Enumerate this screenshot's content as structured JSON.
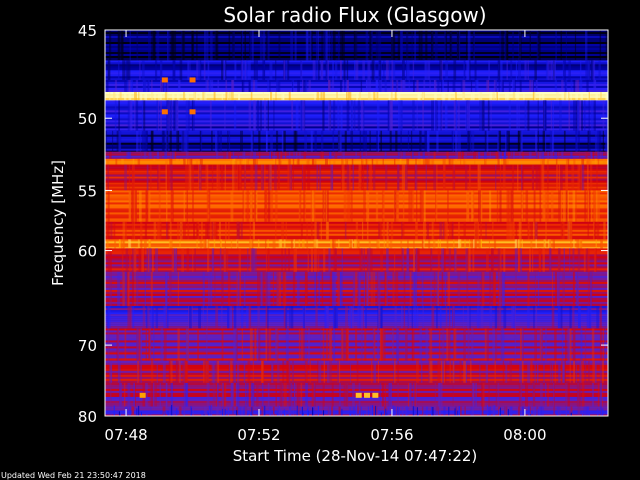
{
  "chart_data": {
    "type": "heatmap",
    "title": "Solar radio Flux (Glasgow)",
    "xlabel": "Start Time (28-Nov-14 07:47:22)",
    "ylabel": "Frequency [MHz]",
    "x_ticks": [
      "07:48",
      "07:52",
      "07:56",
      "08:00"
    ],
    "y_ticks": [
      "45",
      "50",
      "55",
      "60",
      "70",
      "80"
    ],
    "y_scale": "reciprocal",
    "ylim": [
      45,
      80
    ],
    "xlim": [
      "07:47:22",
      "08:02:30"
    ],
    "colorscale": [
      "#000010",
      "#0000a0",
      "#2020ff",
      "#6020c0",
      "#d00010",
      "#f03000",
      "#ff7000",
      "#ffb000",
      "#ffffc0"
    ],
    "bands": [
      {
        "f_from": 45.0,
        "f_to": 46.6,
        "level": 0.05
      },
      {
        "f_from": 46.6,
        "f_to": 47.7,
        "level": 0.2
      },
      {
        "f_from": 47.7,
        "f_to": 48.4,
        "level": 0.25
      },
      {
        "f_from": 48.4,
        "f_to": 48.9,
        "level": 1.0
      },
      {
        "f_from": 48.9,
        "f_to": 50.8,
        "level": 0.22
      },
      {
        "f_from": 50.8,
        "f_to": 52.2,
        "level": 0.12
      },
      {
        "f_from": 52.2,
        "f_to": 52.7,
        "level": 0.4
      },
      {
        "f_from": 52.7,
        "f_to": 53.1,
        "level": 0.7
      },
      {
        "f_from": 53.1,
        "f_to": 55.0,
        "level": 0.55
      },
      {
        "f_from": 55.0,
        "f_to": 57.5,
        "level": 0.65
      },
      {
        "f_from": 57.5,
        "f_to": 59.0,
        "level": 0.6
      },
      {
        "f_from": 59.0,
        "f_to": 59.8,
        "level": 0.8
      },
      {
        "f_from": 59.8,
        "f_to": 62.0,
        "level": 0.5
      },
      {
        "f_from": 62.0,
        "f_to": 65.5,
        "level": 0.45
      },
      {
        "f_from": 65.5,
        "f_to": 68.0,
        "level": 0.32
      },
      {
        "f_from": 68.0,
        "f_to": 72.0,
        "level": 0.45
      },
      {
        "f_from": 72.0,
        "f_to": 75.0,
        "level": 0.48
      },
      {
        "f_from": 75.0,
        "f_to": 78.5,
        "level": 0.42
      },
      {
        "f_from": 78.5,
        "f_to": 80.0,
        "level": 0.38
      }
    ],
    "bursts": [
      {
        "time": "07:49:10",
        "f": 47.7,
        "level": 0.75
      },
      {
        "time": "07:49:10",
        "f": 49.6,
        "level": 0.75
      },
      {
        "time": "07:50:00",
        "f": 47.7,
        "level": 0.75
      },
      {
        "time": "07:50:00",
        "f": 49.6,
        "level": 0.75
      },
      {
        "time": "07:55:00",
        "f": 76.8,
        "level": 0.9
      },
      {
        "time": "07:55:15",
        "f": 76.8,
        "level": 0.9
      },
      {
        "time": "07:55:30",
        "f": 76.8,
        "level": 0.9
      },
      {
        "time": "07:48:30",
        "f": 76.8,
        "level": 0.85
      }
    ],
    "grid": false,
    "legend": "none"
  },
  "footer": {
    "updated": "Updated Wed Feb 21 23:50:47 2018"
  }
}
